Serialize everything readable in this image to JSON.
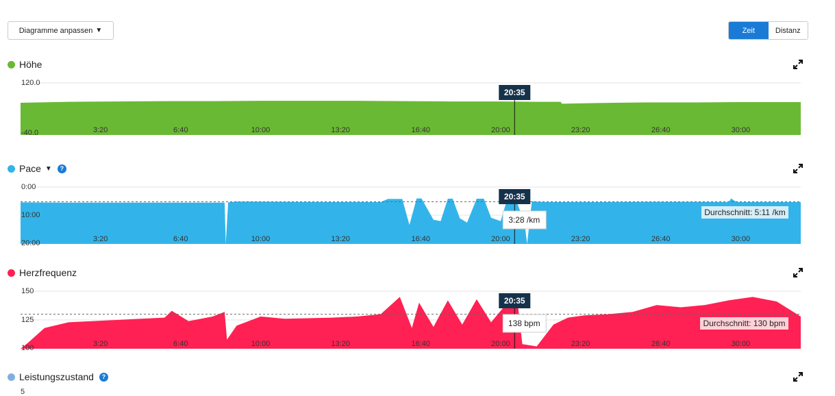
{
  "toolbar": {
    "customize_label": "Diagramme anpassen",
    "toggle": [
      {
        "label": "Zeit",
        "active": true
      },
      {
        "label": "Distanz",
        "active": false
      }
    ]
  },
  "cursor": {
    "time_label": "20:35"
  },
  "sections": [
    {
      "title": "Höhe",
      "color": "#6ab934",
      "icon": "expand-icon"
    },
    {
      "title": "Pace",
      "color": "#32b4ea",
      "icon": "expand-icon",
      "dropdown": true,
      "help": "?"
    },
    {
      "title": "Herzfrequenz",
      "color": "#ff2153",
      "icon": "expand-icon"
    },
    {
      "title": "Leistungszustand",
      "color": "#80b0e0",
      "icon": "expand-icon",
      "help": "?",
      "tick_label": "5"
    }
  ],
  "chart_data": [
    {
      "type": "area",
      "title": "Höhe",
      "x_unit": "min",
      "x_range": [
        0,
        32.5
      ],
      "y_range": [
        -40,
        120
      ],
      "y_tick_labels": [
        "120.0",
        "-40.0"
      ],
      "x_tick_labels": [
        "3:20",
        "6:40",
        "10:00",
        "13:20",
        "16:40",
        "20:00",
        "23:20",
        "26:40",
        "30:00"
      ],
      "x_tick_values": [
        3.33,
        6.67,
        10,
        13.33,
        16.67,
        20,
        23.33,
        26.67,
        30
      ],
      "x": [
        0,
        2,
        4,
        6,
        8,
        10,
        12,
        14,
        16,
        18,
        20,
        21.5,
        22.5,
        22.55,
        24,
        26,
        28,
        30,
        32.5
      ],
      "values": [
        59,
        62,
        63,
        64,
        64,
        65,
        65,
        65,
        64,
        63,
        63,
        62,
        62,
        56,
        58,
        60,
        60,
        61,
        61
      ],
      "cursor_x": 20.58
    },
    {
      "type": "area",
      "title": "Pace",
      "x_unit": "min",
      "x_range": [
        0,
        32.5
      ],
      "y_range": [
        0,
        20
      ],
      "y_inverted": true,
      "y_tick_labels": [
        "0:00",
        "10:00",
        "20:00"
      ],
      "x_tick_labels": [
        "3:20",
        "6:40",
        "10:00",
        "13:20",
        "16:40",
        "20:00",
        "23:20",
        "26:40",
        "30:00"
      ],
      "x_tick_values": [
        3.33,
        6.67,
        10,
        13.33,
        16.67,
        20,
        23.33,
        26.67,
        30
      ],
      "x": [
        0,
        2,
        4,
        6,
        8.5,
        8.55,
        8.65,
        9,
        11,
        13,
        15,
        15.3,
        15.9,
        16.2,
        16.5,
        16.7,
        17.2,
        17.5,
        17.8,
        18,
        18.3,
        18.6,
        19,
        19.3,
        19.6,
        20,
        20.3,
        20.6,
        21.0,
        21.1,
        21.3,
        21.6,
        22,
        24,
        26,
        28,
        29.5,
        29.6,
        29.8,
        30,
        31,
        32.5
      ],
      "values": [
        5.4,
        5.5,
        5.5,
        5.5,
        5.5,
        20,
        5.4,
        5.1,
        5.2,
        5.3,
        5.3,
        4.2,
        4.2,
        13.3,
        4.0,
        4.0,
        11.5,
        12.0,
        4.1,
        4.1,
        11.0,
        12.5,
        4.1,
        4.1,
        10.8,
        12.0,
        3.5,
        3.5,
        13.0,
        20,
        5.0,
        5.2,
        5.3,
        5.3,
        5.2,
        5.2,
        5.3,
        4.0,
        5.2,
        5.3,
        5.3,
        5.3
      ],
      "cursor_x": 20.58,
      "tooltip": "3:28 /km",
      "average_label": "Durchschnitt: 5:11 /km",
      "average": 5.18
    },
    {
      "type": "area",
      "title": "Herzfrequenz",
      "x_unit": "min",
      "x_range": [
        0,
        32.5
      ],
      "y_range": [
        100,
        150
      ],
      "y_tick_labels": [
        "150",
        "125",
        "100"
      ],
      "x_tick_labels": [
        "3:20",
        "6:40",
        "10:00",
        "13:20",
        "16:40",
        "20:00",
        "23:20",
        "26:40",
        "30:00"
      ],
      "x_tick_values": [
        3.33,
        6.67,
        10,
        13.33,
        16.67,
        20,
        23.33,
        26.67,
        30
      ],
      "x": [
        0,
        0.3,
        1,
        2,
        4,
        5,
        6,
        6.3,
        7,
        8,
        8.5,
        8.6,
        9,
        10,
        11,
        13,
        14,
        15,
        15.8,
        16.3,
        16.6,
        17.2,
        17.8,
        18.4,
        19.0,
        19.6,
        20.2,
        20.7,
        20.9,
        21.5,
        22.2,
        22.8,
        23.5,
        24.5,
        25.5,
        26.5,
        27.5,
        28.5,
        29.5,
        30.5,
        31.5,
        32.5
      ],
      "values": [
        100,
        105,
        118,
        123,
        125,
        126,
        127,
        133,
        124,
        128,
        132,
        108,
        120,
        128,
        126,
        127,
        128,
        130,
        145,
        118,
        140,
        119,
        142,
        121,
        143,
        123,
        138,
        141,
        104,
        102,
        121,
        127,
        129,
        130,
        132,
        138,
        136,
        138,
        142,
        145,
        141,
        128
      ],
      "cursor_x": 20.58,
      "tooltip": "138 bpm",
      "average_label": "Durchschnitt: 130 bpm",
      "average": 130
    }
  ]
}
